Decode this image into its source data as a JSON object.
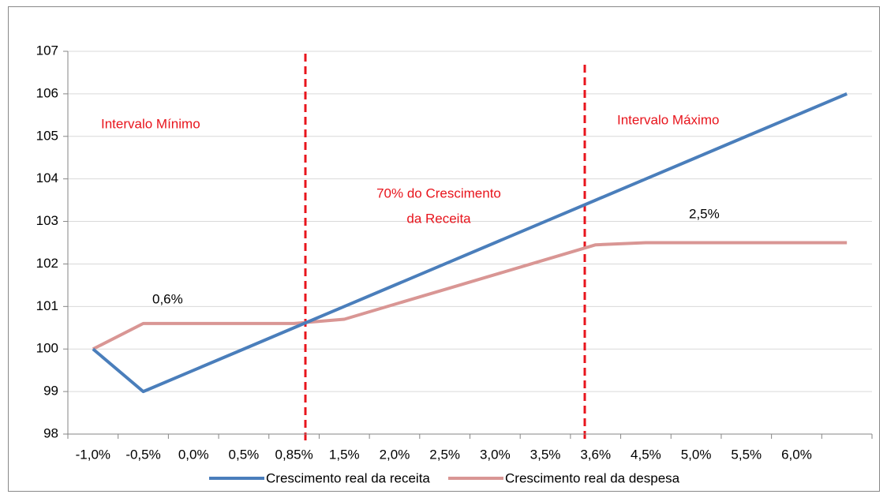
{
  "chart_data": {
    "type": "line",
    "categories": [
      "-1,0%",
      "-0,5%",
      "0,0%",
      "0,5%",
      "0,85%",
      "1,5%",
      "2,0%",
      "2,5%",
      "3,0%",
      "3,5%",
      "3,6%",
      "4,5%",
      "5,0%",
      "5,5%",
      "6,0%",
      null
    ],
    "series": [
      {
        "name": "Crescimento real da receita",
        "color": "#4a7ebb",
        "values": [
          100,
          99,
          99.5,
          100,
          100.5,
          101,
          101.5,
          102,
          102.5,
          103,
          103.5,
          104,
          104.5,
          105,
          105.5,
          106
        ]
      },
      {
        "name": "Crescimento real da despesa",
        "color": "#d99694",
        "values": [
          100,
          100.6,
          100.6,
          100.6,
          100.6,
          100.7,
          101.05,
          101.4,
          101.75,
          102.1,
          102.45,
          102.5,
          102.5,
          102.5,
          102.5,
          102.5
        ]
      }
    ],
    "ylim": [
      98,
      107
    ],
    "yticks": [
      98,
      99,
      100,
      101,
      102,
      103,
      104,
      105,
      106,
      107
    ],
    "grid": true,
    "legend": "bottom",
    "annotations": [
      "Intervalo Mínimo",
      "70% do Crescimento",
      "da Receita",
      "Intervalo Máximo",
      "0,6%",
      "2,5%"
    ]
  }
}
